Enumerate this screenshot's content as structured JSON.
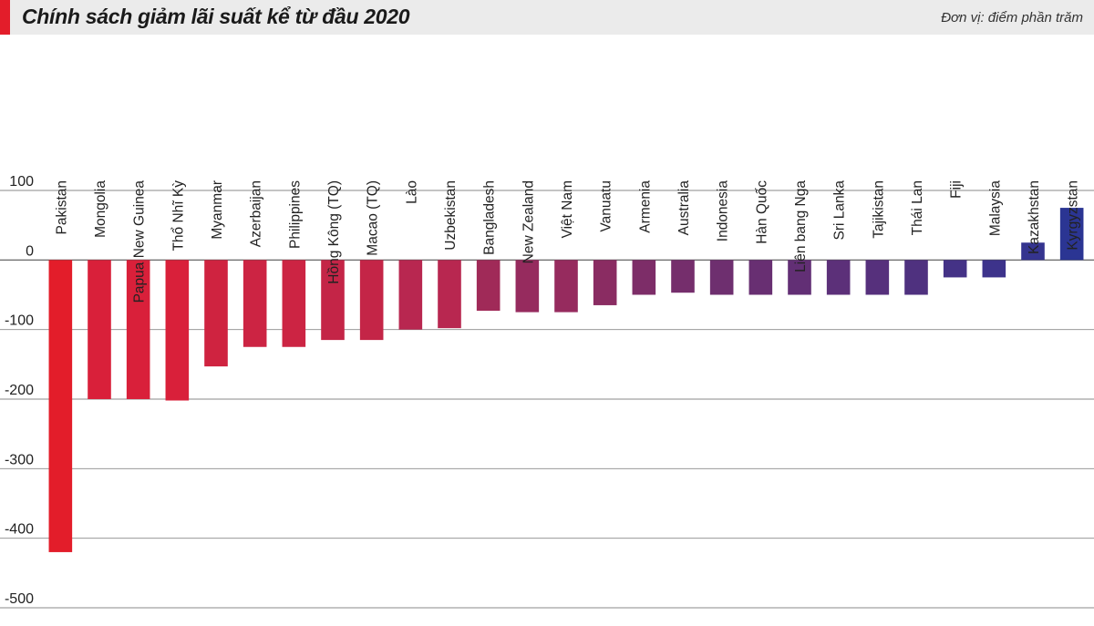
{
  "header": {
    "title": "Chính sách giảm lãi suất kể từ đầu 2020",
    "unit": "Đơn vị: điểm phần trăm",
    "accent_color": "#e31d2a"
  },
  "chart_data": {
    "type": "bar",
    "title": "Chính sách giảm lãi suất kể từ đầu 2020",
    "xlabel": "",
    "ylabel": "Đơn vị: điểm phần trăm",
    "ylim": [
      -500,
      100
    ],
    "yticks": [
      100,
      0,
      -100,
      -200,
      -300,
      -400,
      -500
    ],
    "grid": true,
    "categories": [
      "Pakistan",
      "Mongolia",
      "Papua New Guinea",
      "Thổ Nhĩ Kỳ",
      "Myanmar",
      "Azerbaijan",
      "Philippines",
      "Hồng Kông (TQ)",
      "Macao (TQ)",
      "Lào",
      "Uzbekistan",
      "Bangladesh",
      "New Zealand",
      "Việt Nam",
      "Vanuatu",
      "Armenia",
      "Australia",
      "Indonesia",
      "Hàn Quốc",
      "Liên bang Nga",
      "Sri Lanka",
      "Tajikistan",
      "Thái Lan",
      "Fiji",
      "Malaysia",
      "Kazakhstan",
      "Kyrgyzstan"
    ],
    "values": [
      -420,
      -200,
      -200,
      -202,
      -153,
      -125,
      -125,
      -115,
      -115,
      -100,
      -98,
      -73,
      -75,
      -75,
      -65,
      -50,
      -47,
      -50,
      -50,
      -50,
      -50,
      -50,
      -50,
      -25,
      -25,
      25,
      75
    ],
    "colors": [
      "#e31d2a",
      "#d9203a",
      "#d9203a",
      "#d9203a",
      "#cf2340",
      "#cc2443",
      "#cc2443",
      "#c42547",
      "#c42547",
      "#b82750",
      "#b82750",
      "#a02a58",
      "#962b5e",
      "#962b5e",
      "#8a2c62",
      "#7d2d68",
      "#752e6c",
      "#6e2f6f",
      "#682f72",
      "#622f75",
      "#5c3079",
      "#56307c",
      "#4f317f",
      "#443286",
      "#3d338b",
      "#35348f",
      "#2b3593"
    ]
  }
}
